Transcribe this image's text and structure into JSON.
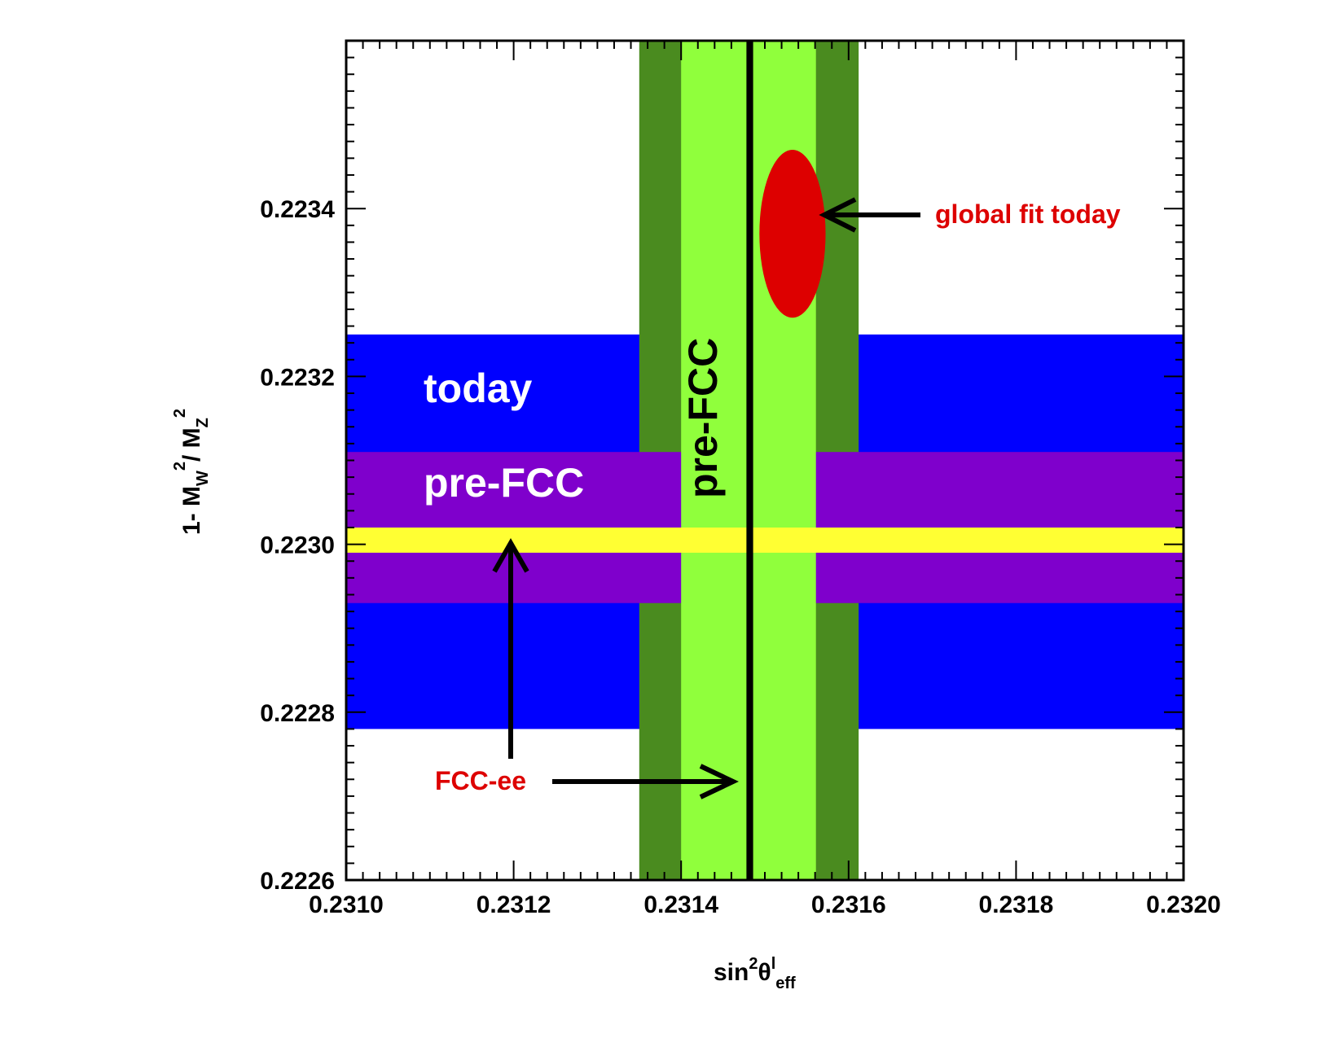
{
  "chart_data": {
    "type": "band",
    "xlim": [
      0.231,
      0.232
    ],
    "ylim": [
      0.2226,
      0.2236
    ],
    "x_ticks": [
      0.231,
      0.2312,
      0.2314,
      0.2316,
      0.2318,
      0.232
    ],
    "x_tick_labels": [
      "0.2310",
      "0.2312",
      "0.2314",
      "0.2316",
      "0.2318",
      "0.2320"
    ],
    "y_ticks": [
      0.2226,
      0.2228,
      0.223,
      0.2232,
      0.2234
    ],
    "y_tick_labels": [
      "0.2226",
      "0.2228",
      "0.2230",
      "0.2232",
      "0.2234"
    ],
    "xlabel": {
      "main": "sin",
      "sup1": "2",
      "theta": "θ",
      "sup2": "l",
      "sub": "eff"
    },
    "ylabel": {
      "prefix": "1- M",
      "sub1": "W",
      "sup1": "2",
      "mid": "/ M",
      "sub2": "Z",
      "sup2": "2"
    },
    "horizontal_bands": [
      {
        "name": "today",
        "y_min": 0.22278,
        "y_max": 0.22325,
        "color": "#0000ff"
      },
      {
        "name": "pre-FCC",
        "y_min": 0.22293,
        "y_max": 0.22311,
        "color": "#7f00cc"
      },
      {
        "name": "FCC-ee",
        "y_min": 0.22299,
        "y_max": 0.22302,
        "color": "#ffff33"
      }
    ],
    "vertical_bands": [
      {
        "name": "today",
        "x_min": 0.23135,
        "x_max": 0.231612,
        "color": "#4a8b1f"
      },
      {
        "name": "pre-FCC",
        "x_min": 0.2314,
        "x_max": 0.231561,
        "color": "#90ff3c"
      },
      {
        "name": "FCC-ee",
        "x_min": 0.231478,
        "x_max": 0.231486,
        "color": "#000000"
      }
    ],
    "ellipse": {
      "name": "global fit today",
      "cx": 0.231533,
      "cy": 0.22337,
      "rx": 3.95e-05,
      "ry": 0.0001,
      "color": "#dd0000"
    },
    "annotations": {
      "today_label": "today",
      "prefcc_h_label": "pre-FCC",
      "prefcc_v_label": "pre-FCC",
      "fccee_label": "FCC-ee",
      "global_fit_label": "global fit today"
    },
    "colors": {
      "annotation_red": "#dd0000",
      "arrow": "#000000"
    }
  }
}
